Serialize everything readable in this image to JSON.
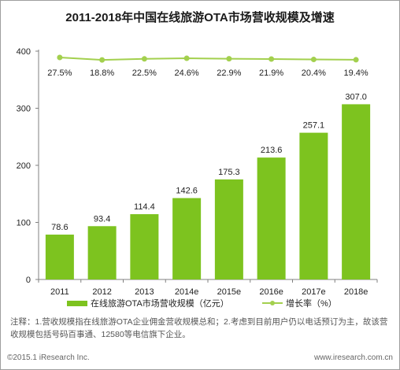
{
  "title": "2011-2018年中国在线旅游OTA市场营收规模及增速",
  "colors": {
    "bar": "#7dc31f",
    "line": "#a3d04e",
    "axis": "#808080",
    "text": "#222222"
  },
  "chart_data": {
    "type": "bar",
    "categories": [
      "2011",
      "2012",
      "2013",
      "2014e",
      "2015e",
      "2016e",
      "2017e",
      "2018e"
    ],
    "series": [
      {
        "name": "在线旅游OTA市场营收规模（亿元）",
        "type": "bar",
        "values": [
          78.6,
          93.4,
          114.4,
          142.6,
          175.3,
          213.6,
          257.1,
          307.0
        ]
      },
      {
        "name": "增长率（%）",
        "type": "line",
        "values": [
          27.5,
          18.8,
          22.5,
          24.6,
          22.9,
          21.9,
          20.4,
          19.4
        ]
      }
    ],
    "bar_labels": [
      "78.6",
      "93.4",
      "114.4",
      "142.6",
      "175.3",
      "213.6",
      "257.1",
      "307.0"
    ],
    "line_labels": [
      "27.5%",
      "18.8%",
      "22.5%",
      "24.6%",
      "22.9%",
      "21.9%",
      "20.4%",
      "19.4%"
    ],
    "ylim": [
      0,
      400
    ],
    "yticks": [
      "0",
      "100",
      "200",
      "300",
      "400"
    ],
    "grid": false,
    "legend_position": "bottom"
  },
  "legend": {
    "bar_label": "在线旅游OTA市场营收规模（亿元）",
    "line_label": "增长率（%）"
  },
  "note": "注释：1.营收规模指在线旅游OTA企业佣金营收规模总和；2.考虑到目前用户仍以电话预订为主，故该营收规模包括号码百事通、12580等电信旗下企业。",
  "footer": {
    "left": "©2015.1 iResearch Inc.",
    "right": "www.iresearch.com.cn"
  }
}
